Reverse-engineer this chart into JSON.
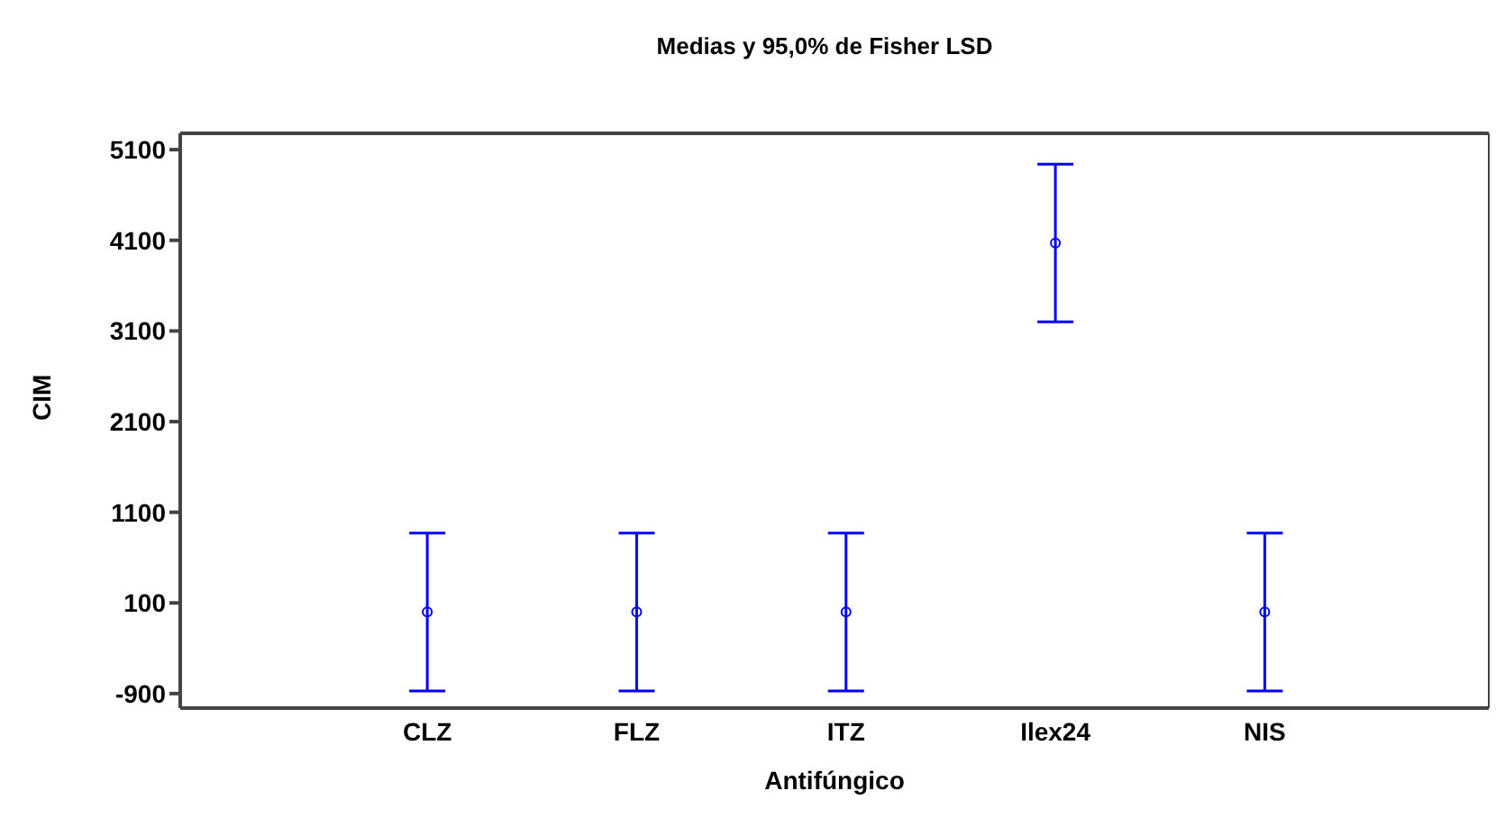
{
  "chart_data": {
    "type": "scatter",
    "title": "Medias y 95,0% de Fisher LSD",
    "xlabel": "Antifúngico",
    "ylabel": "CIM",
    "categories": [
      "CLZ",
      "FLZ",
      "ITZ",
      "Ilex24",
      "NIS"
    ],
    "series": [
      {
        "color": "#0000ff",
        "values": [
          0,
          0,
          0,
          4070,
          0
        ],
        "errors": [
          870,
          870,
          870,
          870,
          870
        ]
      }
    ],
    "marker": "circle",
    "ylim": [
      -1060,
      5280
    ],
    "yticks": [
      -900,
      100,
      1100,
      2100,
      3100,
      4100,
      5100
    ],
    "grid": false,
    "legend": false
  }
}
